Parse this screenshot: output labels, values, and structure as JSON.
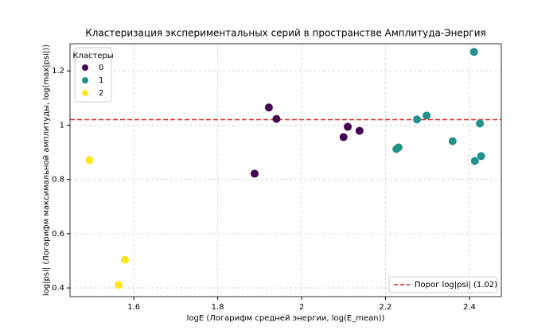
{
  "chart_data": {
    "type": "scatter",
    "title": "Кластеризация экспериментальных серий в пространстве Амплитуда-Энергия",
    "x_label": "logE (Логарифм средней энергии, log(E_mean))",
    "y_label": "log|psi| (Логарифм максимальной амплитуды, log(max|psi|))",
    "legend_title": "Кластеры",
    "legend_position": "upper left",
    "grid": true,
    "xlim": [
      1.448,
      2.476
    ],
    "xticks": [
      1.6,
      1.8,
      2.0,
      2.2,
      2.4
    ],
    "ylim": [
      0.368,
      1.3
    ],
    "yticks": [
      0.4,
      0.6,
      0.8,
      1.0,
      1.2
    ],
    "series": [
      {
        "name": "0",
        "color": "#440154",
        "x": [
          1.888,
          1.922,
          1.94,
          2.11,
          2.1,
          2.138
        ],
        "values": [
          0.821,
          1.065,
          1.023,
          0.994,
          0.956,
          0.979
        ]
      },
      {
        "name": "1",
        "color": "#21918c",
        "x": [
          2.411,
          2.226,
          2.231,
          2.275,
          2.298,
          2.36,
          2.413,
          2.425,
          2.428
        ],
        "values": [
          1.27,
          0.912,
          0.918,
          1.021,
          1.035,
          0.941,
          0.868,
          1.006,
          0.886
        ]
      },
      {
        "name": "2",
        "color": "#fde725",
        "x": [
          1.494,
          1.579,
          1.564
        ],
        "values": [
          0.871,
          0.504,
          0.411
        ]
      }
    ],
    "threshold": {
      "value": 1.02,
      "label": "Порог log|psi| (1.02)",
      "color": "#e31a1c",
      "legend_position": "lower right"
    }
  }
}
